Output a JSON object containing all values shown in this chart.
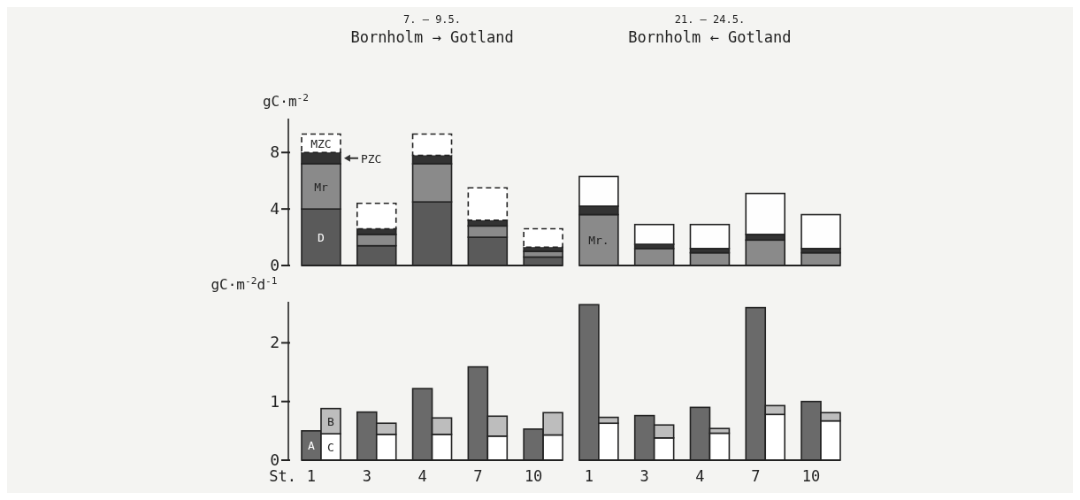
{
  "chart_data": [
    {
      "type": "bar",
      "stacked": true,
      "title": "Bornholm → Gotland",
      "subtitle": "7. – 9.5.",
      "ylabel": "gC·m$^{-2}$",
      "categories": [
        null,
        null,
        null,
        null,
        null,
        null,
        null,
        null,
        null,
        null
      ],
      "ylim": [
        0,
        10.4
      ],
      "yticks": [
        0,
        4,
        8
      ],
      "tick_labels": "y",
      "annotations": [
        "21. – 24.5.",
        "Bornholm ← Gotland",
        "Mr."
      ],
      "series": [
        {
          "name": "D",
          "color": "#5a5a5a",
          "values": [
            4,
            1.4,
            4.5,
            2,
            0.6,
            null,
            null,
            null,
            null,
            null
          ]
        },
        {
          "name": "Mr",
          "color": "#8a8a8a",
          "values": [
            3.2,
            0.8,
            2.7,
            0.8,
            0.4,
            3.6,
            1.2,
            0.9,
            1.8,
            0.9
          ]
        },
        {
          "name": "PZC",
          "color": "#333333",
          "values": [
            0.8,
            0.4,
            0.6,
            0.4,
            0.3,
            0.6,
            0.3,
            0.3,
            0.4,
            0.3
          ]
        },
        {
          "name": "MZC",
          "color": "#ffffff",
          "line_style": "dashed",
          "values": [
            1.3,
            1.8,
            1.5,
            2.3,
            1.3,
            null,
            null,
            null,
            null,
            null
          ]
        },
        {
          "color": "#fefefe",
          "values": [
            null,
            null,
            null,
            null,
            null,
            2.1,
            1.4,
            1.7,
            2.9,
            2.4
          ]
        }
      ]
    },
    {
      "type": "bar",
      "stacked": true,
      "xlabel": "St.",
      "ylabel": "gC·m$^{-2}$d$^{-1}$",
      "categories": [
        "1",
        null,
        "3",
        null,
        "4",
        null,
        "7",
        null,
        "10",
        null,
        "1",
        null,
        "3",
        null,
        "4",
        null,
        "7",
        null,
        "10",
        null
      ],
      "ylim": [
        0,
        2.7
      ],
      "yticks": [
        0,
        1,
        2
      ],
      "series": [
        {
          "name": "A",
          "color": "#6a6a6a",
          "values": [
            0.5,
            null,
            0.82,
            null,
            1.22,
            null,
            1.59,
            null,
            0.53,
            null,
            2.65,
            null,
            0.76,
            null,
            0.9,
            null,
            2.6,
            null,
            1.0,
            null
          ]
        },
        {
          "name": "C",
          "color": "#ffffff",
          "values": [
            null,
            0.45,
            null,
            0.44,
            null,
            0.44,
            null,
            0.41,
            null,
            0.43,
            null,
            0.63,
            null,
            0.38,
            null,
            0.46,
            null,
            0.78,
            null,
            0.67
          ]
        },
        {
          "name": "B",
          "color": "#bdbdbd",
          "values": [
            null,
            0.43,
            null,
            0.19,
            null,
            0.28,
            null,
            0.34,
            null,
            0.38,
            null,
            0.1,
            null,
            0.22,
            null,
            0.08,
            null,
            0.15,
            null,
            0.14
          ]
        }
      ]
    }
  ]
}
